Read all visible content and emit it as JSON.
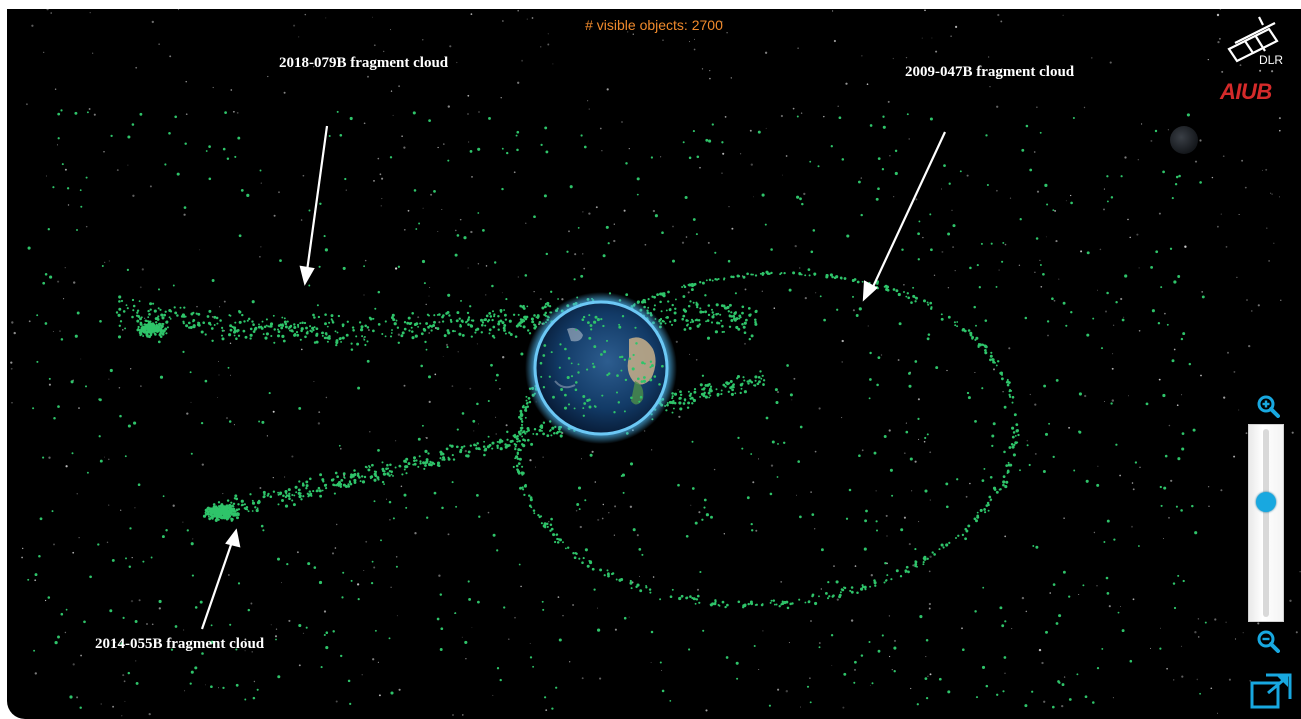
{
  "hud": {
    "visible_objects_text": "# visible objects: 2700"
  },
  "annotations": [
    {
      "id": "2018-079B",
      "text": "2018-079B fragment cloud"
    },
    {
      "id": "2009-047B",
      "text": "2009-047B fragment cloud"
    },
    {
      "id": "2014-055B",
      "text": "2014-055B fragment cloud"
    }
  ],
  "logos": {
    "dlr_text": "DLR",
    "aiub_text": "AIUB"
  },
  "zoom": {
    "level": 0.62
  },
  "icons": {
    "zoom_in": "zoom-in-icon",
    "zoom_out": "zoom-out-icon",
    "fullscreen": "fullscreen-icon"
  },
  "colors": {
    "background": "#000000",
    "fragments": "#2fc46a",
    "counter": "#f08a2c",
    "control_accent": "#18a8e0",
    "aiub_red": "#d42a2a"
  }
}
